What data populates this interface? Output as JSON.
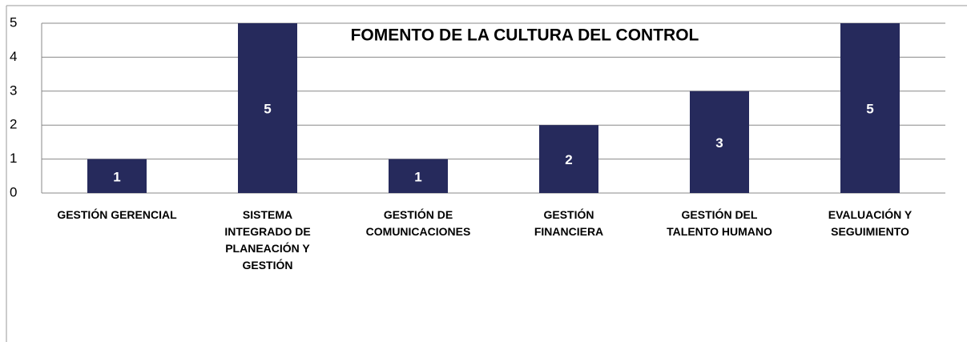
{
  "chart_data": {
    "type": "bar",
    "title": "FOMENTO DE LA CULTURA DEL CONTROL",
    "categories": [
      "GESTIÓN GERENCIAL",
      "SISTEMA INTEGRADO DE PLANEACIÓN Y GESTIÓN",
      "GESTIÓN DE COMUNICACIONES",
      "GESTIÓN FINANCIERA",
      "GESTIÓN DEL TALENTO HUMANO",
      "EVALUACIÓN Y SEGUIMIENTO"
    ],
    "values": [
      1,
      5,
      1,
      2,
      3,
      5
    ],
    "color": "#262a5c",
    "ylim": [
      0,
      5
    ],
    "yticks": [
      0,
      1,
      2,
      3,
      4,
      5
    ],
    "grid": true
  }
}
